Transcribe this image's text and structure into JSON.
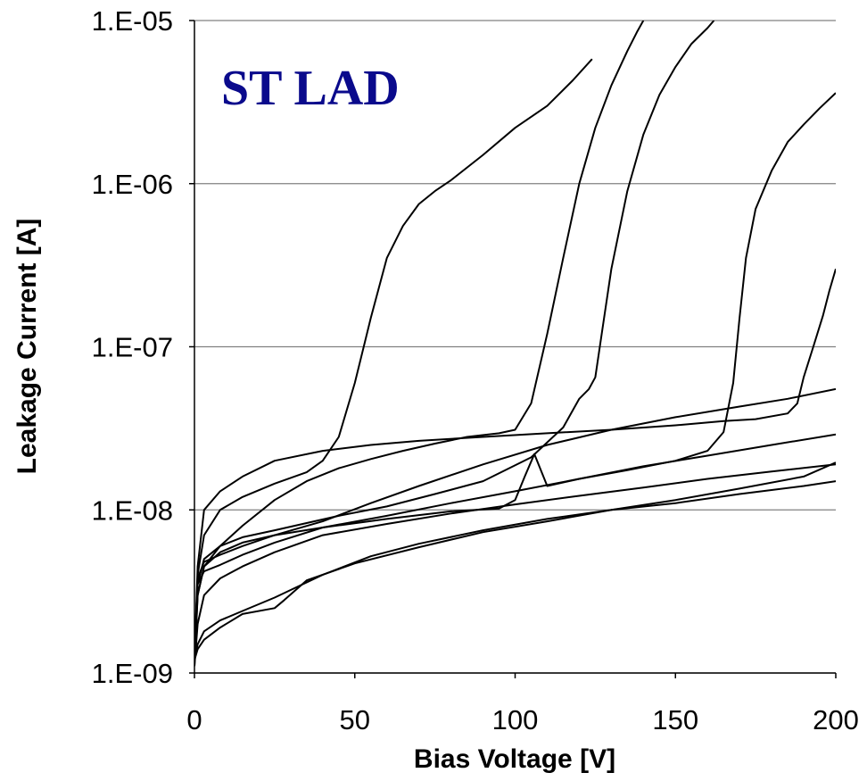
{
  "chart_data": {
    "type": "line",
    "title": "ST LAD",
    "xlabel": "Bias Voltage [V]",
    "ylabel": "Leakage Current [A]",
    "xlim": [
      0,
      200
    ],
    "ylim": [
      1e-09,
      1e-05
    ],
    "yscale": "log",
    "grid": "horizontal",
    "title_color": "#0a0a8c",
    "x_ticks": [
      "0",
      "50",
      "100",
      "150",
      "200"
    ],
    "y_ticks": [
      "1.E-09",
      "1.E-08",
      "1.E-07",
      "1.E-06",
      "1.E-05"
    ],
    "series": [
      {
        "x": [
          0,
          1,
          3,
          8,
          15,
          25,
          35,
          40,
          45,
          50,
          55,
          60,
          65,
          70,
          75,
          80,
          90,
          100,
          110,
          118,
          124
        ],
        "y": [
          1.2e-09,
          4e-09,
          7e-09,
          1e-08,
          1.2e-08,
          1.45e-08,
          1.7e-08,
          2e-08,
          2.8e-08,
          6e-08,
          1.5e-07,
          3.5e-07,
          5.5e-07,
          7.5e-07,
          9e-07,
          1.05e-06,
          1.5e-06,
          2.2e-06,
          3e-06,
          4.3e-06,
          5.8e-06
        ]
      },
      {
        "x": [
          0,
          1,
          3,
          8,
          15,
          25,
          35,
          45,
          55,
          65,
          75,
          85,
          95,
          100,
          105,
          110,
          115,
          120,
          125,
          130,
          135,
          138,
          140
        ],
        "y": [
          1.1e-09,
          3e-09,
          4.5e-09,
          6e-09,
          8e-09,
          1.15e-08,
          1.5e-08,
          1.8e-08,
          2.05e-08,
          2.3e-08,
          2.55e-08,
          2.8e-08,
          2.95e-08,
          3.1e-08,
          4.5e-08,
          1.2e-07,
          3.5e-07,
          1e-06,
          2.2e-06,
          4e-06,
          6.5e-06,
          8.5e-06,
          1e-05
        ]
      },
      {
        "x": [
          0,
          1,
          3,
          8,
          15,
          25,
          35,
          45,
          60,
          75,
          90,
          105,
          115,
          120,
          123,
          125,
          127,
          130,
          135,
          140,
          145,
          150,
          155,
          160,
          162
        ],
        "y": [
          1.2e-09,
          3.5e-09,
          5e-09,
          6e-09,
          6.8e-09,
          7.5e-09,
          8.3e-09,
          9.2e-09,
          1.05e-08,
          1.25e-08,
          1.5e-08,
          2.1e-08,
          3.2e-08,
          4.8e-08,
          5.5e-08,
          6.5e-08,
          1.2e-07,
          3e-07,
          9e-07,
          2e-06,
          3.5e-06,
          5.2e-06,
          7.2e-06,
          9e-06,
          1e-05
        ]
      },
      {
        "x": [
          0,
          1,
          3,
          8,
          15,
          25,
          40,
          60,
          80,
          95,
          100,
          103,
          106,
          110,
          120,
          135,
          150,
          160,
          165,
          168,
          170,
          172,
          175,
          180,
          185,
          190,
          195,
          200
        ],
        "y": [
          1.2e-09,
          3e-09,
          4.5e-09,
          5.5e-09,
          6.3e-09,
          7e-09,
          7.8e-09,
          8.8e-09,
          9.8e-09,
          1.02e-08,
          1.15e-08,
          1.6e-08,
          2.2e-08,
          1.4e-08,
          1.55e-08,
          1.75e-08,
          2e-08,
          2.3e-08,
          3e-08,
          6e-08,
          1.5e-07,
          3.5e-07,
          7e-07,
          1.2e-06,
          1.8e-06,
          2.3e-06,
          2.9e-06,
          3.6e-06
        ]
      },
      {
        "x": [
          0,
          1,
          3,
          8,
          15,
          25,
          40,
          55,
          70,
          90,
          110,
          130,
          150,
          165,
          175,
          185,
          188,
          190,
          193,
          196,
          198,
          200
        ],
        "y": [
          1.2e-09,
          4.5e-09,
          1e-08,
          1.3e-08,
          1.6e-08,
          2e-08,
          2.3e-08,
          2.5e-08,
          2.65e-08,
          2.8e-08,
          2.95e-08,
          3.1e-08,
          3.3e-08,
          3.5e-08,
          3.6e-08,
          3.9e-08,
          4.5e-08,
          6.5e-08,
          1e-07,
          1.55e-07,
          2.2e-07,
          3e-07
        ]
      },
      {
        "x": [
          0,
          1,
          3,
          8,
          15,
          25,
          40,
          55,
          70,
          90,
          110,
          130,
          150,
          170,
          185,
          200
        ],
        "y": [
          1.3e-09,
          3.8e-09,
          4.8e-09,
          5.3e-09,
          6e-09,
          7e-09,
          8.5e-09,
          1.1e-08,
          1.4e-08,
          1.9e-08,
          2.5e-08,
          3.1e-08,
          3.7e-08,
          4.3e-08,
          4.8e-08,
          5.5e-08
        ]
      },
      {
        "x": [
          0,
          1,
          3,
          8,
          15,
          25,
          40,
          60,
          80,
          100,
          120,
          140,
          160,
          180,
          200
        ],
        "y": [
          1.2e-09,
          3.5e-09,
          4.2e-09,
          4.6e-09,
          5.3e-09,
          6.3e-09,
          7.8e-09,
          9.2e-09,
          1.1e-08,
          1.3e-08,
          1.55e-08,
          1.85e-08,
          2.15e-08,
          2.5e-08,
          2.9e-08
        ]
      },
      {
        "x": [
          0,
          1,
          3,
          8,
          15,
          25,
          40,
          60,
          80,
          100,
          120,
          140,
          160,
          180,
          200
        ],
        "y": [
          1.1e-09,
          2e-09,
          3e-09,
          3.8e-09,
          4.5e-09,
          5.5e-09,
          7e-09,
          8.2e-09,
          9.5e-09,
          1.08e-08,
          1.22e-08,
          1.37e-08,
          1.55e-08,
          1.72e-08,
          1.9e-08
        ]
      },
      {
        "x": [
          0,
          1,
          3,
          8,
          15,
          25,
          40,
          55,
          70,
          90,
          110,
          130,
          150,
          170,
          190,
          200
        ],
        "y": [
          1.2e-09,
          1.5e-09,
          1.8e-09,
          2.1e-09,
          2.4e-09,
          2.9e-09,
          4e-09,
          5.2e-09,
          6.2e-09,
          7.5e-09,
          8.8e-09,
          1e-08,
          1.15e-08,
          1.35e-08,
          1.6e-08,
          1.95e-08
        ]
      },
      {
        "x": [
          0,
          1,
          3,
          8,
          15,
          25,
          28,
          35,
          50,
          70,
          90,
          110,
          130,
          150,
          170,
          190,
          200
        ],
        "y": [
          1.2e-09,
          1.4e-09,
          1.6e-09,
          1.9e-09,
          2.3e-09,
          2.5e-09,
          2.8e-09,
          3.7e-09,
          4.7e-09,
          5.9e-09,
          7.3e-09,
          8.5e-09,
          1e-08,
          1.1e-08,
          1.25e-08,
          1.4e-08,
          1.5e-08
        ]
      }
    ]
  }
}
